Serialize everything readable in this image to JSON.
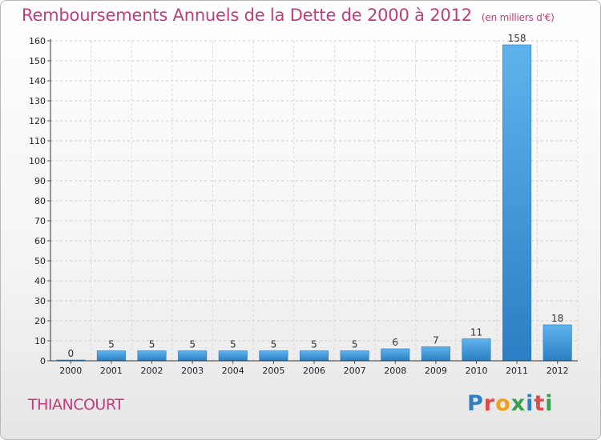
{
  "header": {
    "title": "Remboursements Annuels de la Dette de 2000 à 2012",
    "unit": "(en milliers d'€)"
  },
  "footer": {
    "city": "THIANCOURT",
    "logo": "Proxiti"
  },
  "colors": {
    "title": "#c23b7c",
    "bar_top": "#5fb3ec",
    "bar_bottom": "#2a7fc4"
  },
  "chart_data": {
    "type": "bar",
    "title": "Remboursements Annuels de la Dette de 2000 à 2012",
    "xlabel": "",
    "ylabel": "",
    "ylim": [
      0,
      160
    ],
    "yticks": [
      0,
      10,
      20,
      30,
      40,
      50,
      60,
      70,
      80,
      90,
      100,
      110,
      120,
      130,
      140,
      150,
      160
    ],
    "categories": [
      "2000",
      "2001",
      "2002",
      "2003",
      "2004",
      "2005",
      "2006",
      "2007",
      "2008",
      "2009",
      "2010",
      "2011",
      "2012"
    ],
    "values": [
      0,
      5,
      5,
      5,
      5,
      5,
      5,
      5,
      6,
      7,
      11,
      158,
      18
    ],
    "grid": true
  }
}
